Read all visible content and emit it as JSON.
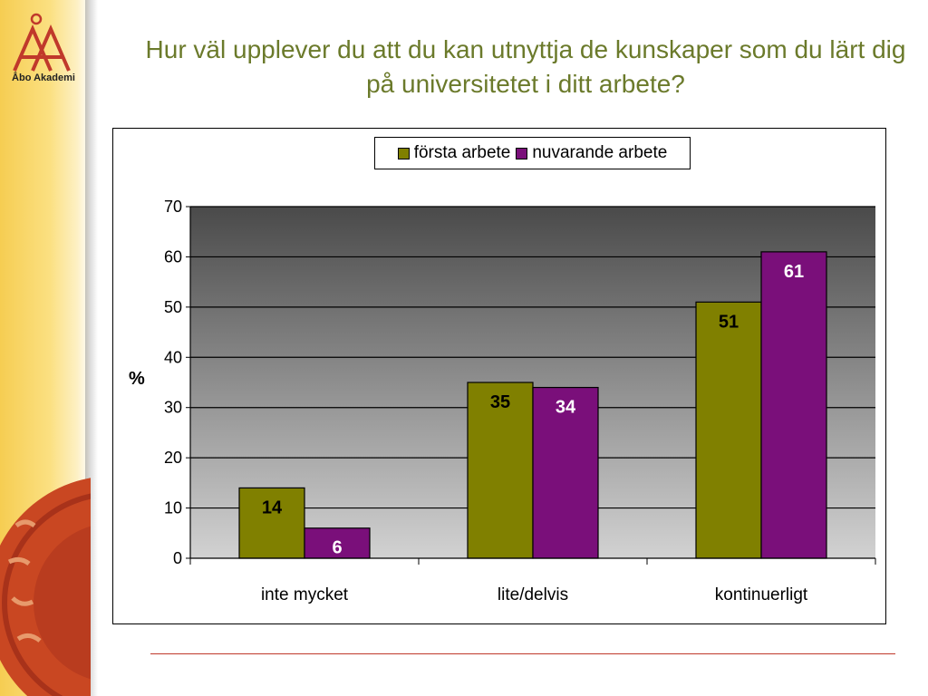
{
  "logo": {
    "text": "Åbo Akademi"
  },
  "title": "Hur väl upplever du att du kan utnyttja de kunskaper som du lärt dig på universitetet i ditt arbete?",
  "colors": {
    "series1": "#808000",
    "series2": "#7a0f7a",
    "band": "#f6cd52",
    "title": "#6b7a2b",
    "footer_line": "#c0392b"
  },
  "chart_data": {
    "type": "bar",
    "categories": [
      "inte mycket",
      "lite/delvis",
      "kontinuerligt"
    ],
    "series": [
      {
        "name": "första arbete",
        "values": [
          14,
          35,
          51
        ],
        "color": "#808000"
      },
      {
        "name": "nuvarande arbete",
        "values": [
          6,
          34,
          61
        ],
        "color": "#7a0f7a"
      }
    ],
    "title": "",
    "xlabel": "",
    "ylabel": "%",
    "ylim": [
      0,
      70
    ],
    "yticks": [
      0,
      10,
      20,
      30,
      40,
      50,
      60,
      70
    ],
    "grid": true,
    "legend_position": "top-center",
    "data_labels": true
  }
}
